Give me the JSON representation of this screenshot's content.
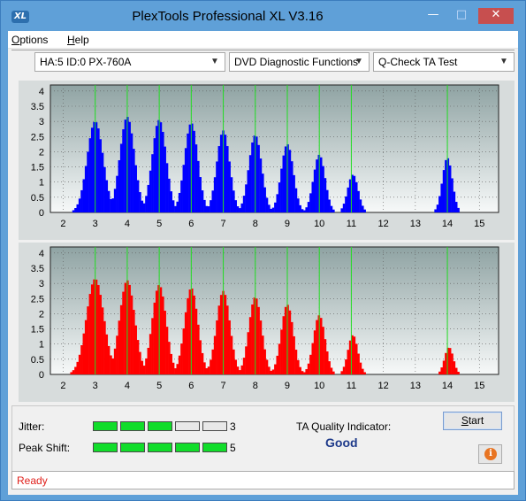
{
  "window": {
    "title": "PlexTools Professional XL V3.16",
    "icon_text": "XL",
    "minimize": "—",
    "maximize": "□",
    "close": "✕"
  },
  "menu": [
    {
      "label": "Options",
      "accel": "O",
      "rest": "ptions"
    },
    {
      "label": "Help",
      "accel": "H",
      "rest": "elp"
    }
  ],
  "toolbar": {
    "drive": "HA:5 ID:0  PX-760A",
    "function": "DVD Diagnostic Functions",
    "test": "Q-Check TA Test"
  },
  "chart_data": [
    {
      "type": "bar",
      "name": "lands",
      "color": "#0000ff",
      "x_ticks": [
        2,
        3,
        4,
        5,
        6,
        7,
        8,
        9,
        10,
        11,
        12,
        13,
        14,
        15
      ],
      "y_ticks": [
        "0",
        "0.5",
        "1",
        "1.5",
        "2",
        "2.5",
        "3",
        "3.5",
        "4"
      ],
      "xlim": [
        1.6,
        15.6
      ],
      "ylim": [
        0,
        4.2
      ],
      "marker_lines": [
        3,
        4,
        5,
        6,
        7,
        8,
        9,
        10,
        11,
        14
      ],
      "peaks": [
        {
          "x": 3.0,
          "h": 3.0,
          "w": 0.55
        },
        {
          "x": 4.0,
          "h": 3.15,
          "w": 0.5
        },
        {
          "x": 5.0,
          "h": 3.05,
          "w": 0.48
        },
        {
          "x": 6.0,
          "h": 2.95,
          "w": 0.46
        },
        {
          "x": 7.0,
          "h": 2.7,
          "w": 0.44
        },
        {
          "x": 8.0,
          "h": 2.55,
          "w": 0.44
        },
        {
          "x": 9.0,
          "h": 2.25,
          "w": 0.42
        },
        {
          "x": 10.0,
          "h": 1.9,
          "w": 0.4
        },
        {
          "x": 11.05,
          "h": 1.25,
          "w": 0.36
        },
        {
          "x": 14.0,
          "h": 1.8,
          "w": 0.34
        }
      ]
    },
    {
      "type": "bar",
      "name": "pits",
      "color": "#ff0000",
      "x_ticks": [
        2,
        3,
        4,
        5,
        6,
        7,
        8,
        9,
        10,
        11,
        12,
        13,
        14,
        15
      ],
      "y_ticks": [
        "0",
        "0.5",
        "1",
        "1.5",
        "2",
        "2.5",
        "3",
        "3.5",
        "4"
      ],
      "xlim": [
        1.6,
        15.6
      ],
      "ylim": [
        0,
        4.2
      ],
      "marker_lines": [
        3,
        4,
        5,
        6,
        7,
        8,
        9,
        10,
        11,
        14
      ],
      "peaks": [
        {
          "x": 3.0,
          "h": 3.15,
          "w": 0.6
        },
        {
          "x": 4.0,
          "h": 3.1,
          "w": 0.52
        },
        {
          "x": 5.0,
          "h": 2.95,
          "w": 0.48
        },
        {
          "x": 6.0,
          "h": 2.85,
          "w": 0.46
        },
        {
          "x": 7.0,
          "h": 2.75,
          "w": 0.46
        },
        {
          "x": 8.0,
          "h": 2.55,
          "w": 0.44
        },
        {
          "x": 9.0,
          "h": 2.3,
          "w": 0.42
        },
        {
          "x": 10.0,
          "h": 1.95,
          "w": 0.4
        },
        {
          "x": 11.05,
          "h": 1.3,
          "w": 0.34
        },
        {
          "x": 14.05,
          "h": 0.9,
          "w": 0.3
        }
      ]
    }
  ],
  "metrics": {
    "jitter_label": "Jitter:",
    "jitter_value": "3",
    "jitter_level": 3,
    "peak_label": "Peak Shift:",
    "peak_value": "5",
    "peak_level": 5,
    "segments_total": 5,
    "ta_label": "TA Quality Indicator:",
    "ta_value": "Good"
  },
  "buttons": {
    "start": "Start",
    "start_accel": "S",
    "start_rest": "tart",
    "info": "i"
  },
  "status": {
    "text": "Ready"
  }
}
